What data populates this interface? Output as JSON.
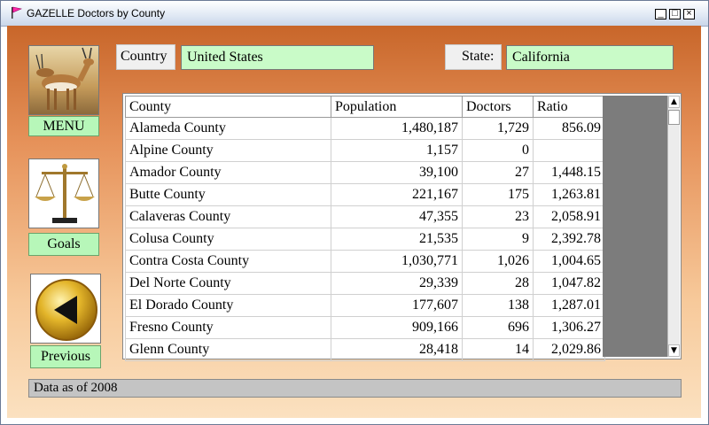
{
  "window": {
    "title": "GAZELLE Doctors by County",
    "minimize_glyph": "_",
    "maximize_glyph": "□",
    "close_glyph": "×"
  },
  "sidebar": {
    "menu_label": "MENU",
    "goals_label": "Goals",
    "previous_label": "Previous"
  },
  "filters": {
    "country_label": "Country",
    "country_value": "United States",
    "state_label": "State:",
    "state_value": "California"
  },
  "table": {
    "columns": [
      "County",
      "Population",
      "Doctors",
      "Ratio"
    ],
    "rows": [
      [
        "Alameda County",
        "1,480,187",
        "1,729",
        "856.09"
      ],
      [
        "Alpine County",
        "1,157",
        "0",
        ""
      ],
      [
        "Amador County",
        "39,100",
        "27",
        "1,448.15"
      ],
      [
        "Butte County",
        "221,167",
        "175",
        "1,263.81"
      ],
      [
        "Calaveras County",
        "47,355",
        "23",
        "2,058.91"
      ],
      [
        "Colusa County",
        "21,535",
        "9",
        "2,392.78"
      ],
      [
        "Contra Costa County",
        "1,030,771",
        "1,026",
        "1,004.65"
      ],
      [
        "Del Norte County",
        "29,339",
        "28",
        "1,047.82"
      ],
      [
        "El Dorado County",
        "177,607",
        "138",
        "1,287.01"
      ],
      [
        "Fresno County",
        "909,166",
        "696",
        "1,306.27"
      ],
      [
        "Glenn County",
        "28,418",
        "14",
        "2,029.86"
      ]
    ]
  },
  "status": {
    "text": "Data as of 2008"
  },
  "colors": {
    "field_bg": "#c9fbc8",
    "button_bg": "#b7f7b9",
    "status_bg": "#c4c4c4",
    "accent": "#c8662a"
  },
  "icons": [
    "flag-icon",
    "gazelle-image",
    "scales-icon",
    "back-arrow-icon",
    "scroll-up-arrow-icon",
    "scroll-down-arrow-icon"
  ]
}
